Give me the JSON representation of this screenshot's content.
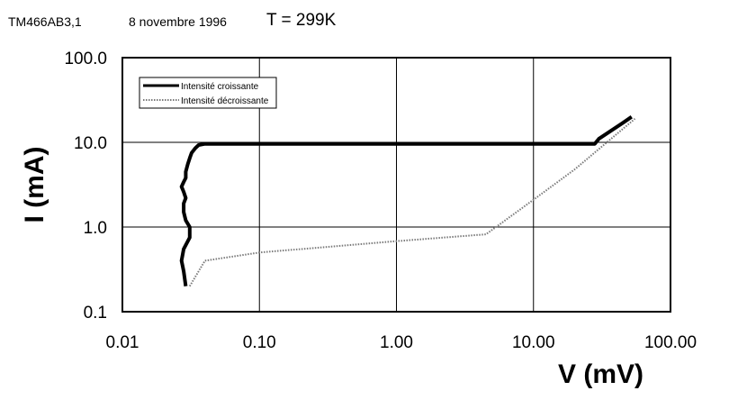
{
  "header": {
    "sample_id": "TM466AB3,1",
    "date": "8 novembre 1996",
    "temperature": "T = 299K"
  },
  "chart_data": {
    "type": "line",
    "xscale": "log",
    "yscale": "log",
    "xlim": [
      0.01,
      100
    ],
    "ylim": [
      0.1,
      100
    ],
    "grid": true,
    "xlabel": "V  (mV)",
    "ylabel": "I  (mA)",
    "x_ticks": [
      "0.01",
      "0.10",
      "1.00",
      "10.00",
      "100.00"
    ],
    "y_ticks": [
      "0.1",
      "1.0",
      "10.0",
      "100.0"
    ],
    "legend_position": "top-left",
    "series": [
      {
        "name": "Intensité croissante",
        "color": "#000000",
        "style": "solid-thick",
        "x": [
          0.029,
          0.028,
          0.027,
          0.028,
          0.031,
          0.031,
          0.029,
          0.028,
          0.028,
          0.029,
          0.028,
          0.027,
          0.028,
          0.029,
          0.029,
          0.03,
          0.031,
          0.032,
          0.034,
          0.036,
          0.04,
          1.0,
          10.0,
          28.0,
          30.0,
          35.0,
          45.0,
          52.0
        ],
        "y": [
          0.2,
          0.3,
          0.4,
          0.55,
          0.75,
          1.0,
          1.2,
          1.5,
          1.9,
          2.2,
          2.6,
          3.0,
          3.4,
          3.8,
          4.5,
          5.5,
          6.5,
          7.5,
          8.5,
          9.3,
          9.6,
          9.6,
          9.6,
          9.6,
          11.0,
          13.0,
          17.0,
          20.0
        ]
      },
      {
        "name": "Intensité décroissante",
        "color": "#7a7a7a",
        "style": "dotted",
        "x": [
          0.031,
          0.04,
          0.1,
          1.0,
          4.5,
          10.0,
          20.0,
          55.0
        ],
        "y": [
          0.2,
          0.4,
          0.5,
          0.68,
          0.82,
          2.1,
          4.8,
          19.0
        ]
      }
    ]
  }
}
